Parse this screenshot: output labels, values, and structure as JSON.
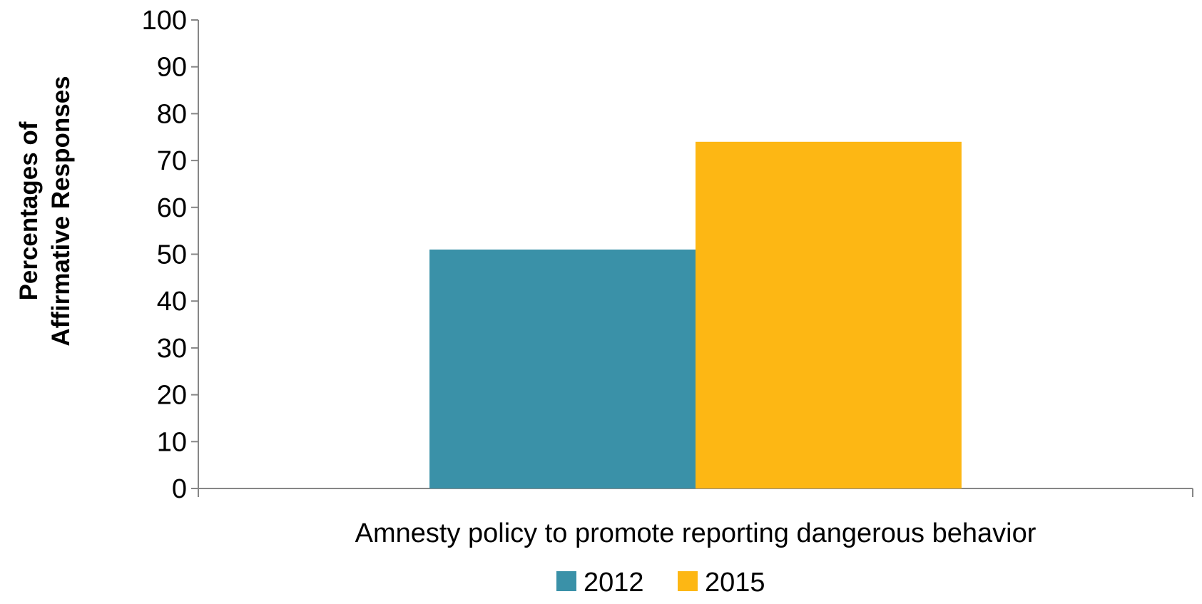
{
  "chart_data": {
    "type": "bar",
    "categories": [
      "Amnesty policy to promote reporting dangerous behavior"
    ],
    "series": [
      {
        "name": "2012",
        "values": [
          51
        ],
        "color": "#3A91A8"
      },
      {
        "name": "2015",
        "values": [
          74
        ],
        "color": "#FDB714"
      }
    ],
    "ylabel": [
      "Percentages of",
      "Affirmative Responses"
    ],
    "xlabel": "",
    "ylim": [
      0,
      100
    ],
    "yticks": [
      0,
      10,
      20,
      30,
      40,
      50,
      60,
      70,
      80,
      90,
      100
    ],
    "grid": false,
    "legend_position": "bottom"
  }
}
